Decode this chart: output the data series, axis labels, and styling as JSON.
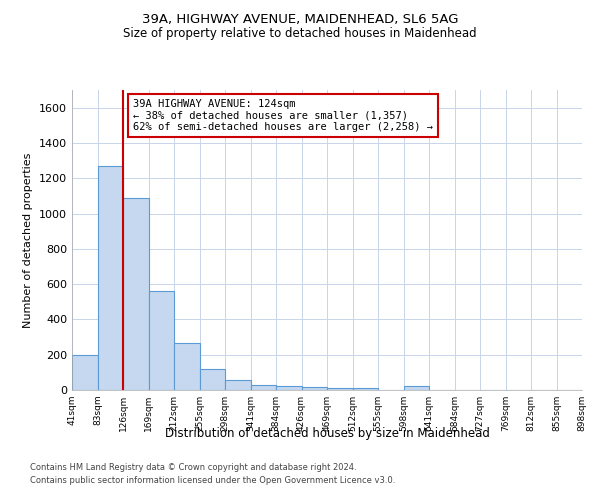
{
  "title1": "39A, HIGHWAY AVENUE, MAIDENHEAD, SL6 5AG",
  "title2": "Size of property relative to detached houses in Maidenhead",
  "xlabel": "Distribution of detached houses by size in Maidenhead",
  "ylabel": "Number of detached properties",
  "footer1": "Contains HM Land Registry data © Crown copyright and database right 2024.",
  "footer2": "Contains public sector information licensed under the Open Government Licence v3.0.",
  "annotation_line1": "39A HIGHWAY AVENUE: 124sqm",
  "annotation_line2": "← 38% of detached houses are smaller (1,357)",
  "annotation_line3": "62% of semi-detached houses are larger (2,258) →",
  "bar_color": "#c5d8ef",
  "bar_edge_color": "#5b9bd5",
  "bar_values": [
    200,
    1270,
    1090,
    560,
    265,
    120,
    55,
    30,
    20,
    15,
    10,
    10,
    0,
    20,
    0,
    0,
    0,
    0,
    0,
    0
  ],
  "bin_labels": [
    "41sqm",
    "83sqm",
    "126sqm",
    "169sqm",
    "212sqm",
    "255sqm",
    "298sqm",
    "341sqm",
    "384sqm",
    "426sqm",
    "469sqm",
    "512sqm",
    "555sqm",
    "598sqm",
    "641sqm",
    "684sqm",
    "727sqm",
    "769sqm",
    "812sqm",
    "855sqm",
    "898sqm"
  ],
  "ylim": [
    0,
    1700
  ],
  "yticks": [
    0,
    200,
    400,
    600,
    800,
    1000,
    1200,
    1400,
    1600
  ],
  "vline_color": "#cc0000",
  "annotation_box_color": "#cc0000",
  "bg_color": "#ffffff",
  "grid_color": "#c8d4e8"
}
